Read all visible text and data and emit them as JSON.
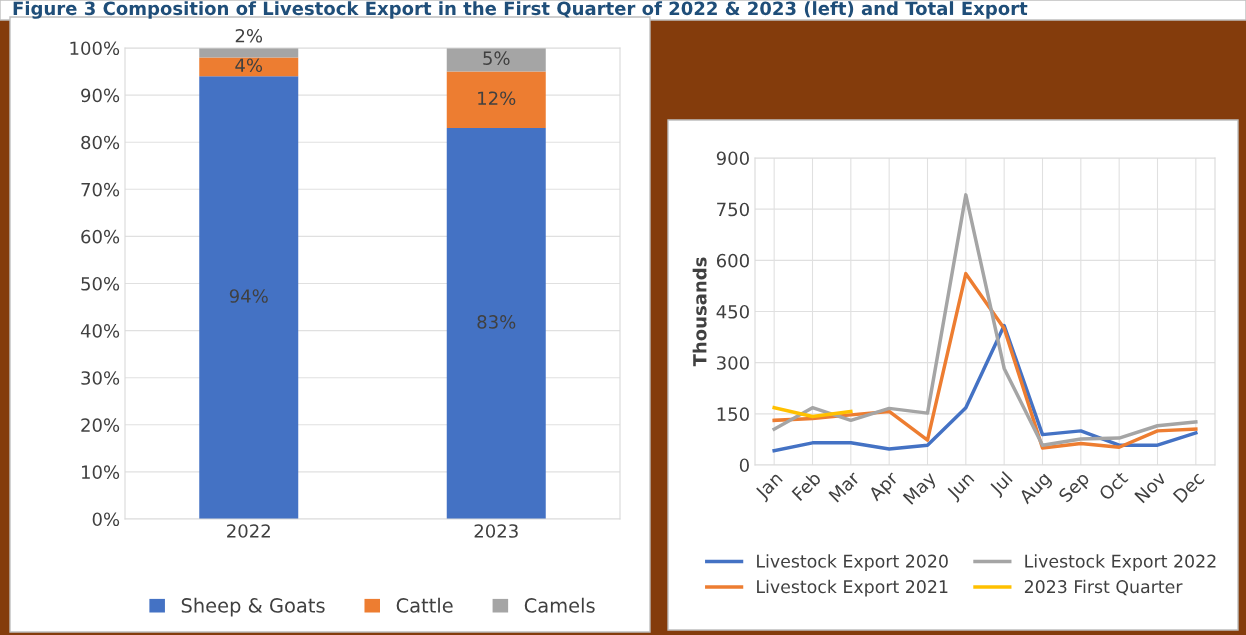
{
  "chart_data": [
    {
      "type": "bar",
      "title": "Figure 3 Composition of Livestock Export in the First Quarter of 2022 & 2023 (left) and Total Export",
      "stacked": true,
      "categories": [
        "2022",
        "2023"
      ],
      "series": [
        {
          "name": "Sheep & Goats",
          "color": "#4472c4",
          "values": [
            94,
            83
          ],
          "value_labels": [
            "94%",
            "83%"
          ]
        },
        {
          "name": "Cattle",
          "color": "#ed7d31",
          "values": [
            4,
            12
          ],
          "value_labels": [
            "4%",
            "12%"
          ]
        },
        {
          "name": "Camels",
          "color": "#a5a5a5",
          "values": [
            2,
            5
          ],
          "value_labels": [
            "2%",
            "5%"
          ]
        }
      ],
      "ylim": [
        0,
        100
      ],
      "yticks": [
        {
          "value": 0,
          "label": "0%"
        },
        {
          "value": 10,
          "label": "10%"
        },
        {
          "value": 20,
          "label": "20%"
        },
        {
          "value": 30,
          "label": "30%"
        },
        {
          "value": 40,
          "label": "40%"
        },
        {
          "value": 50,
          "label": "50%"
        },
        {
          "value": 60,
          "label": "60%"
        },
        {
          "value": 70,
          "label": "70%"
        },
        {
          "value": 80,
          "label": "80%"
        },
        {
          "value": 90,
          "label": "90%"
        },
        {
          "value": 100,
          "label": "100%"
        }
      ],
      "grid": true,
      "legend": "bottom"
    },
    {
      "type": "line",
      "ylabel": "Thousands",
      "categories": [
        "Jan",
        "Feb",
        "Mar",
        "Apr",
        "May",
        "Jun",
        "Jul",
        "Aug",
        "Sep",
        "Oct",
        "Nov",
        "Dec"
      ],
      "series": [
        {
          "name": "Livestock Export 2020",
          "color": "#4472c4",
          "values": [
            42,
            65,
            65,
            47,
            58,
            168,
            409,
            89,
            100,
            58,
            58,
            94
          ]
        },
        {
          "name": "Livestock Export 2021",
          "color": "#ed7d31",
          "values": [
            131,
            136,
            147,
            157,
            73,
            561,
            400,
            50,
            63,
            52,
            100,
            105
          ]
        },
        {
          "name": "Livestock Export 2022",
          "color": "#a5a5a5",
          "values": [
            105,
            168,
            131,
            166,
            152,
            792,
            283,
            58,
            76,
            79,
            115,
            126
          ]
        },
        {
          "name": "2023 First Quarter",
          "color": "#ffc000",
          "values": [
            168,
            142,
            157,
            null,
            null,
            null,
            null,
            null,
            null,
            null,
            null,
            null
          ]
        }
      ],
      "ylim": [
        0,
        900
      ],
      "yticks": [
        0,
        150,
        300,
        450,
        600,
        750,
        900
      ],
      "grid": true,
      "legend": "bottom",
      "marker": "none",
      "line_style": "solid"
    }
  ]
}
